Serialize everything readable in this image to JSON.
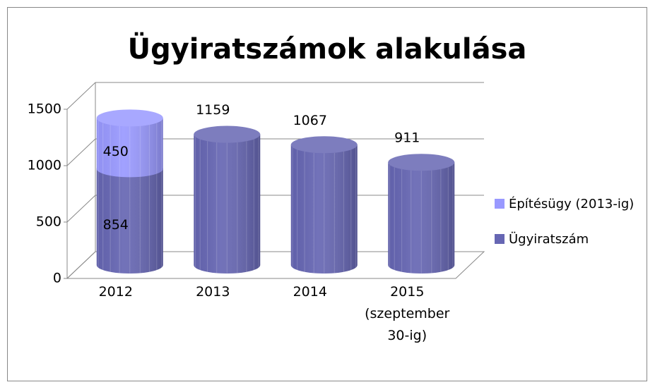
{
  "chart_data": {
    "type": "bar",
    "stacked": true,
    "title": "Ügyiratszámok alakulása",
    "categories": [
      "2012",
      "2013",
      "2014",
      "2015 (szeptember 30-ig)"
    ],
    "series": [
      {
        "name": "Ügyiratszám",
        "color": "#6666b3",
        "values": [
          854,
          1159,
          1067,
          911
        ]
      },
      {
        "name": "Építésügy (2013-ig)",
        "color": "#9999ff",
        "values": [
          450,
          null,
          null,
          null
        ]
      }
    ],
    "ylim": [
      0,
      1500
    ],
    "yticks": [
      0,
      500,
      1000,
      1500
    ],
    "grid": true,
    "legend": "right"
  }
}
